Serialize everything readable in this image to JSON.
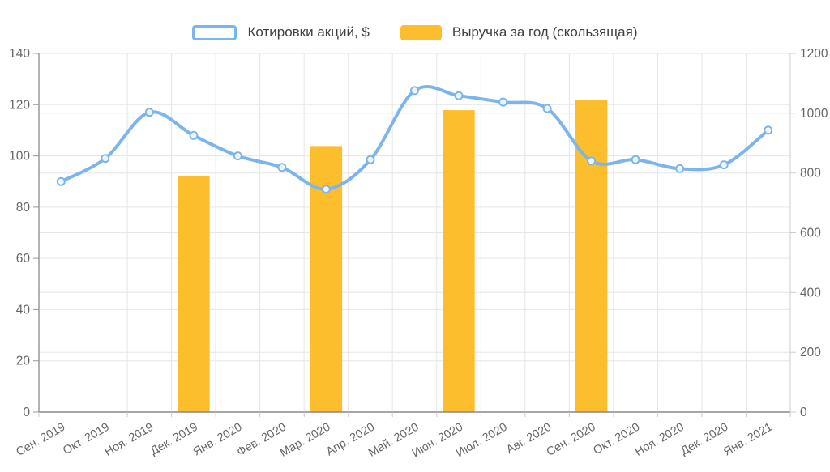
{
  "legend": {
    "items": [
      {
        "label": "Котировки акций, $",
        "series_type": "line",
        "color": "#7cb5ec"
      },
      {
        "label": "Выручка за год (скользящая)",
        "series_type": "bar",
        "color": "#fdbe2d"
      }
    ],
    "position": "top-center"
  },
  "chart_data": {
    "type": "combo-line-bar",
    "title": "",
    "xlabel": "",
    "ylabel_left": "",
    "ylabel_right": "",
    "grid": "both-y-axes-and-vertical",
    "categories": [
      "Сен. 2019",
      "Окт. 2019",
      "Ноя. 2019",
      "Дек. 2019",
      "Янв. 2020",
      "Фев. 2020",
      "Мар. 2020",
      "Апр. 2020",
      "Май. 2020",
      "Июн. 2020",
      "Июл. 2020",
      "Авг. 2020",
      "Сен. 2020",
      "Окт. 2020",
      "Ноя. 2020",
      "Дек. 2020",
      "Янв. 2021"
    ],
    "series": [
      {
        "name": "Котировки акций, $",
        "type": "line",
        "y_axis": "left",
        "color": "#7cb5ec",
        "marker": "hollow-circle",
        "values": [
          90,
          99,
          117,
          108,
          100,
          95.5,
          87,
          98.5,
          125.5,
          123.5,
          121,
          118.5,
          98,
          98.5,
          95,
          96.5,
          110
        ]
      },
      {
        "name": "Выручка за год (скользящая)",
        "type": "bar",
        "y_axis": "right",
        "color": "#fdbe2d",
        "values": [
          null,
          null,
          null,
          790,
          null,
          null,
          890,
          null,
          null,
          1010,
          null,
          null,
          1045,
          null,
          null,
          null,
          null
        ]
      }
    ],
    "left_axis": {
      "min": 0,
      "max": 140,
      "tick_step": 20,
      "tick_labels": [
        "0",
        "20",
        "40",
        "60",
        "80",
        "100",
        "120",
        "140"
      ]
    },
    "right_axis": {
      "min": 0,
      "max": 1200,
      "tick_step": 200,
      "tick_labels": [
        "0",
        "200",
        "400",
        "600",
        "800",
        "1000",
        "1200"
      ]
    },
    "colors": {
      "grid": "#e6e6e6",
      "left_axis_line": "#999999",
      "bottom_axis_line": "#888888",
      "right_axis_line": "#cccccc",
      "tick": "#cccccc",
      "axis_label_text": "#666666"
    }
  }
}
